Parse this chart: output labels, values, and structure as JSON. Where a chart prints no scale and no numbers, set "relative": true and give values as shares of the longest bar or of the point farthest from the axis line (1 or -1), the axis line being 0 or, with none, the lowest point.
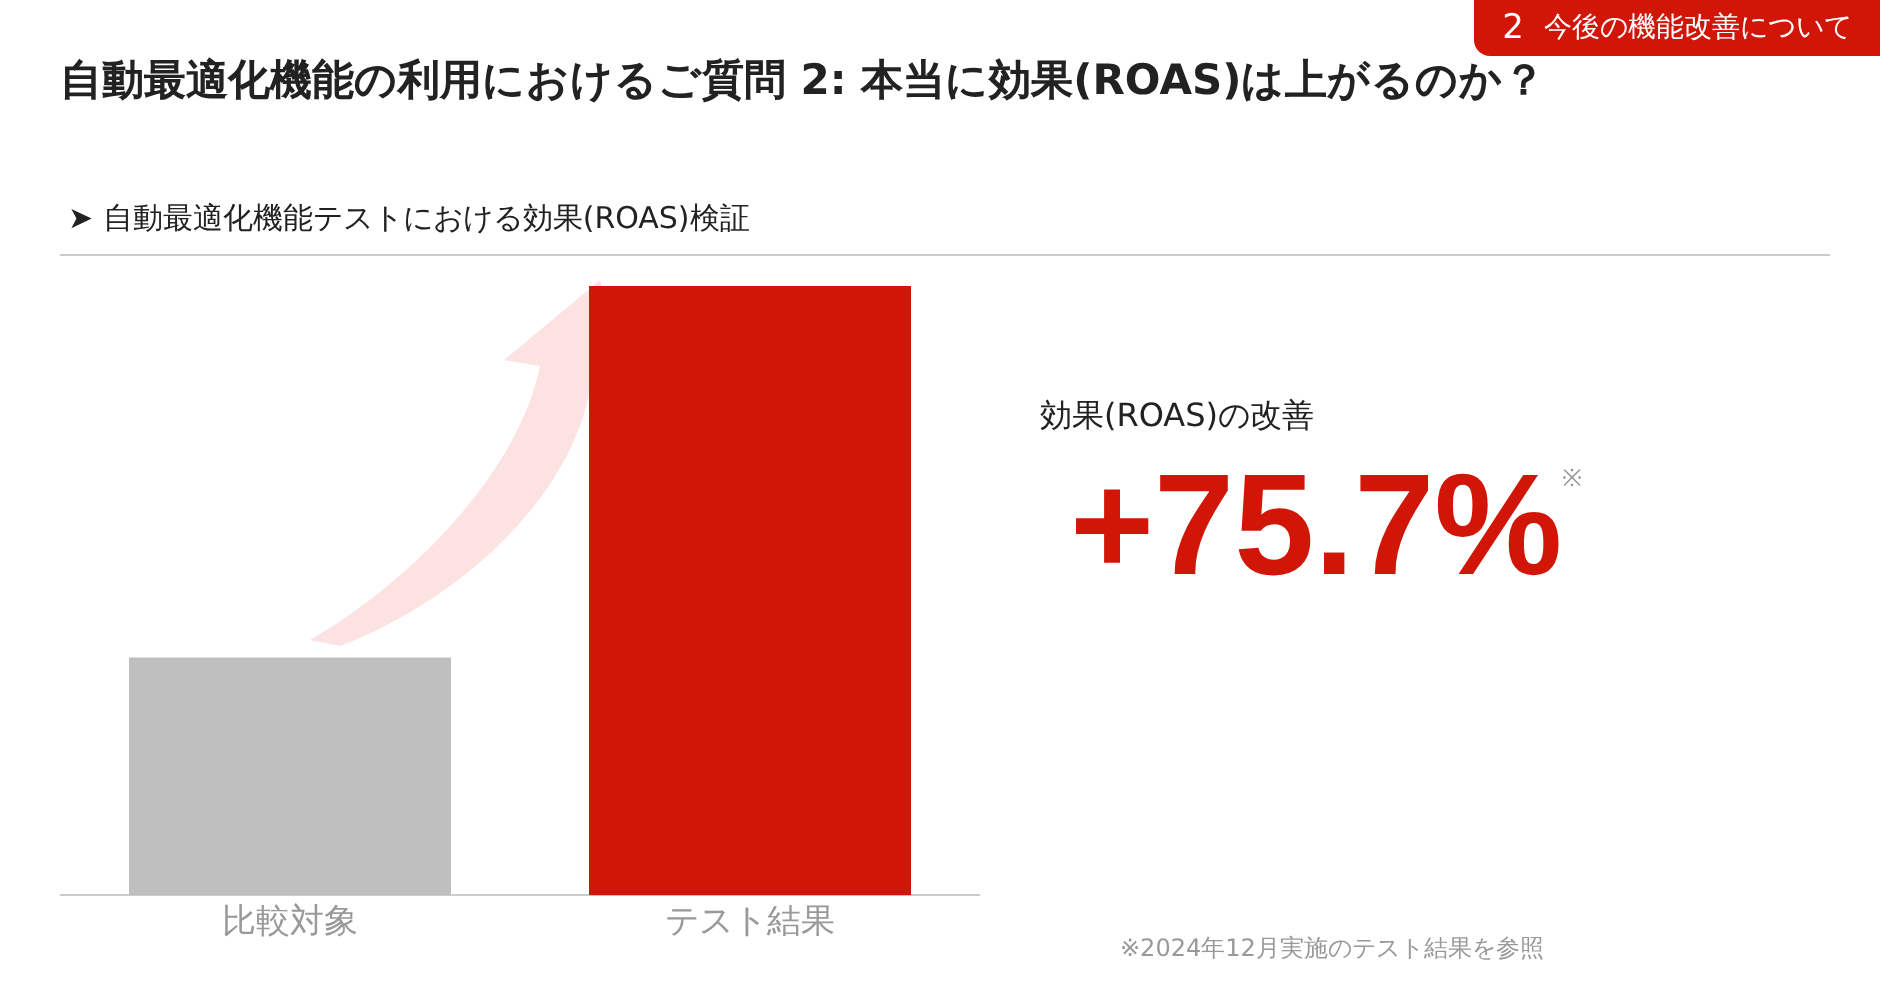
{
  "chart_data": {
    "type": "bar",
    "title": "自動最適化機能の利用におけるご質問 2: 本当に効果(ROAS)は上がるのか？",
    "subtitle": "➤ 自動最適化機能テストにおける効果(ROAS)検証",
    "categories": [
      "比較対象",
      "テスト結果"
    ],
    "values": [
      0.39,
      1
    ],
    "colors": [
      "#bfbfbf",
      "#d11507"
    ],
    "relative": true,
    "grid": false,
    "legend": false,
    "annotations": [
      "2",
      "今後の機能改善について",
      "効果(ROAS)の改善",
      "+75.7%$^{※}$",
      "※2024年12月実施のテスト結果を参照"
    ]
  }
}
